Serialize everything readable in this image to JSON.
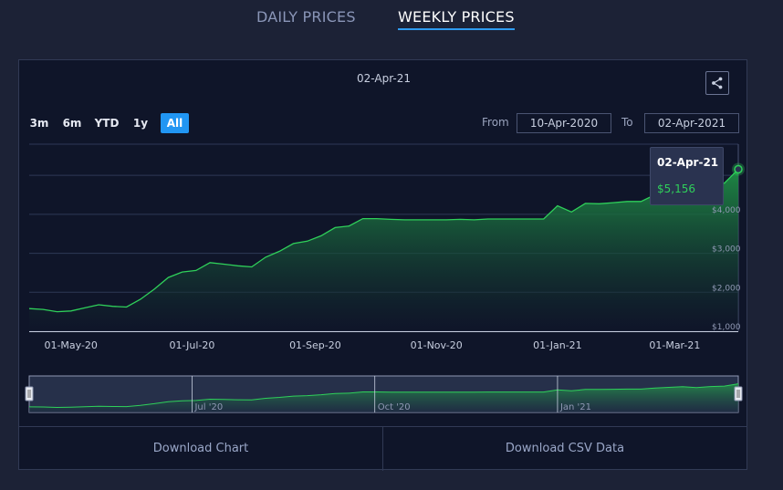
{
  "tabs": {
    "daily": "DAILY PRICES",
    "weekly": "WEEKLY PRICES"
  },
  "toolbar": {
    "ranges": [
      "3m",
      "6m",
      "YTD",
      "1y",
      "All"
    ],
    "active_range": "All",
    "from_label": "From",
    "from_value": "10-Apr-2020",
    "to_label": "To",
    "to_value": "02-Apr-2021"
  },
  "tooltip": {
    "date": "02-Apr-21",
    "value": "$5,156"
  },
  "buttons": {
    "download_chart": "Download Chart",
    "download_csv": "Download CSV Data"
  },
  "colors": {
    "accent": "#2196f3",
    "line": "#2fd05a",
    "background": "#0f1529"
  },
  "chart_data": {
    "type": "area",
    "title": "02-Apr-21",
    "x": [
      "2020-04-10",
      "2020-04-17",
      "2020-04-24",
      "2020-05-01",
      "2020-05-08",
      "2020-05-15",
      "2020-05-22",
      "2020-05-29",
      "2020-06-05",
      "2020-06-12",
      "2020-06-19",
      "2020-06-26",
      "2020-07-03",
      "2020-07-10",
      "2020-07-17",
      "2020-07-24",
      "2020-07-31",
      "2020-08-07",
      "2020-08-14",
      "2020-08-21",
      "2020-08-28",
      "2020-09-04",
      "2020-09-11",
      "2020-09-18",
      "2020-09-25",
      "2020-10-02",
      "2020-10-09",
      "2020-10-16",
      "2020-10-23",
      "2020-10-30",
      "2020-11-06",
      "2020-11-13",
      "2020-11-20",
      "2020-11-27",
      "2020-12-04",
      "2020-12-11",
      "2020-12-18",
      "2020-12-25",
      "2021-01-01",
      "2021-01-08",
      "2021-01-15",
      "2021-01-22",
      "2021-01-29",
      "2021-02-05",
      "2021-02-12",
      "2021-02-19",
      "2021-02-26",
      "2021-03-05",
      "2021-03-12",
      "2021-03-19",
      "2021-03-26",
      "2021-04-02"
    ],
    "series": [
      {
        "values": [
          1580,
          1560,
          1500,
          1520,
          1600,
          1680,
          1640,
          1620,
          1820,
          2080,
          2380,
          2520,
          2560,
          2760,
          2720,
          2680,
          2650,
          2900,
          3050,
          3250,
          3310,
          3450,
          3660,
          3700,
          3890,
          3890,
          3870,
          3860,
          3860,
          3860,
          3860,
          3870,
          3860,
          3880,
          3880,
          3880,
          3880,
          3880,
          4220,
          4060,
          4280,
          4270,
          4300,
          4330,
          4330,
          4500,
          4600,
          4700,
          4560,
          4730,
          4800,
          5156
        ]
      }
    ],
    "x_ticks": [
      "01-May-20",
      "01-Jul-20",
      "01-Sep-20",
      "01-Nov-20",
      "01-Jan-21",
      "01-Mar-21"
    ],
    "y_ticks": [
      "$1,000",
      "$2,000",
      "$3,000",
      "$4,000"
    ],
    "ylim": [
      1000,
      5800
    ],
    "grid": true,
    "navigator_ticks": [
      "Jul '20",
      "Oct '20",
      "Jan '21"
    ]
  }
}
